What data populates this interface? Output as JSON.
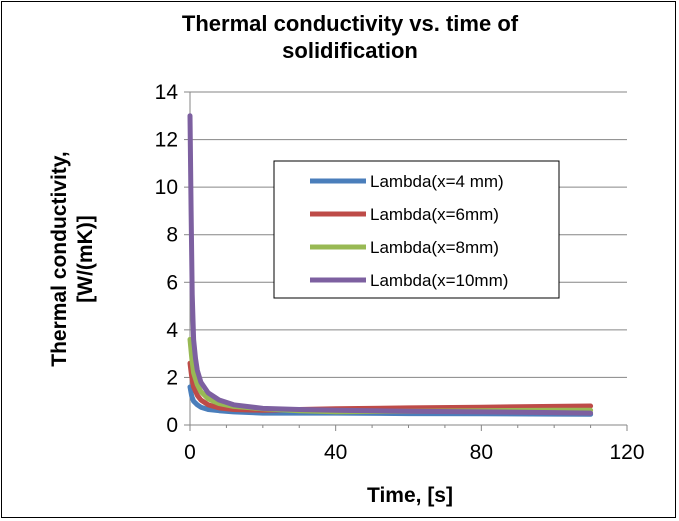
{
  "chart_data": {
    "type": "line",
    "title_line1": "Thermal conductivity vs. time of",
    "title_line2": "solidification",
    "xlabel": "Time, [s]",
    "ylabel_line1": "Thermal conductivity,",
    "ylabel_line2": "[W/(mK)]",
    "xlim": [
      0,
      120
    ],
    "ylim": [
      0,
      14
    ],
    "xticks": [
      "0",
      "40",
      "80",
      "120"
    ],
    "yticks": [
      "0",
      "2",
      "4",
      "6",
      "8",
      "10",
      "12",
      "14"
    ],
    "grid": "horizontal",
    "legend_position": "center-right",
    "series": [
      {
        "name": "Lambda(x=4 mm)",
        "color": "#4a7ebb",
        "x": [
          0,
          0.5,
          1,
          2,
          3,
          5,
          8,
          12,
          20,
          30,
          40,
          60,
          80,
          100,
          110
        ],
        "y": [
          1.6,
          1.2,
          1.0,
          0.85,
          0.75,
          0.65,
          0.6,
          0.55,
          0.5,
          0.5,
          0.5,
          0.48,
          0.47,
          0.46,
          0.45
        ]
      },
      {
        "name": "Lambda(x=6mm)",
        "color": "#be4b48",
        "x": [
          0,
          0.5,
          1,
          2,
          3,
          5,
          8,
          12,
          20,
          30,
          40,
          60,
          80,
          100,
          110
        ],
        "y": [
          2.6,
          2.0,
          1.6,
          1.25,
          1.05,
          0.85,
          0.72,
          0.65,
          0.62,
          0.65,
          0.68,
          0.72,
          0.75,
          0.78,
          0.8
        ]
      },
      {
        "name": "Lambda(x=8mm)",
        "color": "#98b954",
        "x": [
          0,
          0.5,
          1,
          2,
          3,
          5,
          8,
          12,
          20,
          30,
          40,
          60,
          80,
          100,
          110
        ],
        "y": [
          3.6,
          2.8,
          2.2,
          1.7,
          1.4,
          1.1,
          0.9,
          0.78,
          0.68,
          0.6,
          0.56,
          0.58,
          0.6,
          0.62,
          0.62
        ]
      },
      {
        "name": "Lambda(x=10mm)",
        "color": "#7d60a0",
        "x": [
          0,
          0.3,
          0.6,
          1,
          1.5,
          2,
          3,
          5,
          8,
          12,
          20,
          30,
          40,
          60,
          80,
          100,
          110
        ],
        "y": [
          13.0,
          9.0,
          5.5,
          3.6,
          2.8,
          2.3,
          1.8,
          1.35,
          1.05,
          0.85,
          0.7,
          0.65,
          0.62,
          0.58,
          0.55,
          0.52,
          0.5
        ]
      }
    ]
  }
}
